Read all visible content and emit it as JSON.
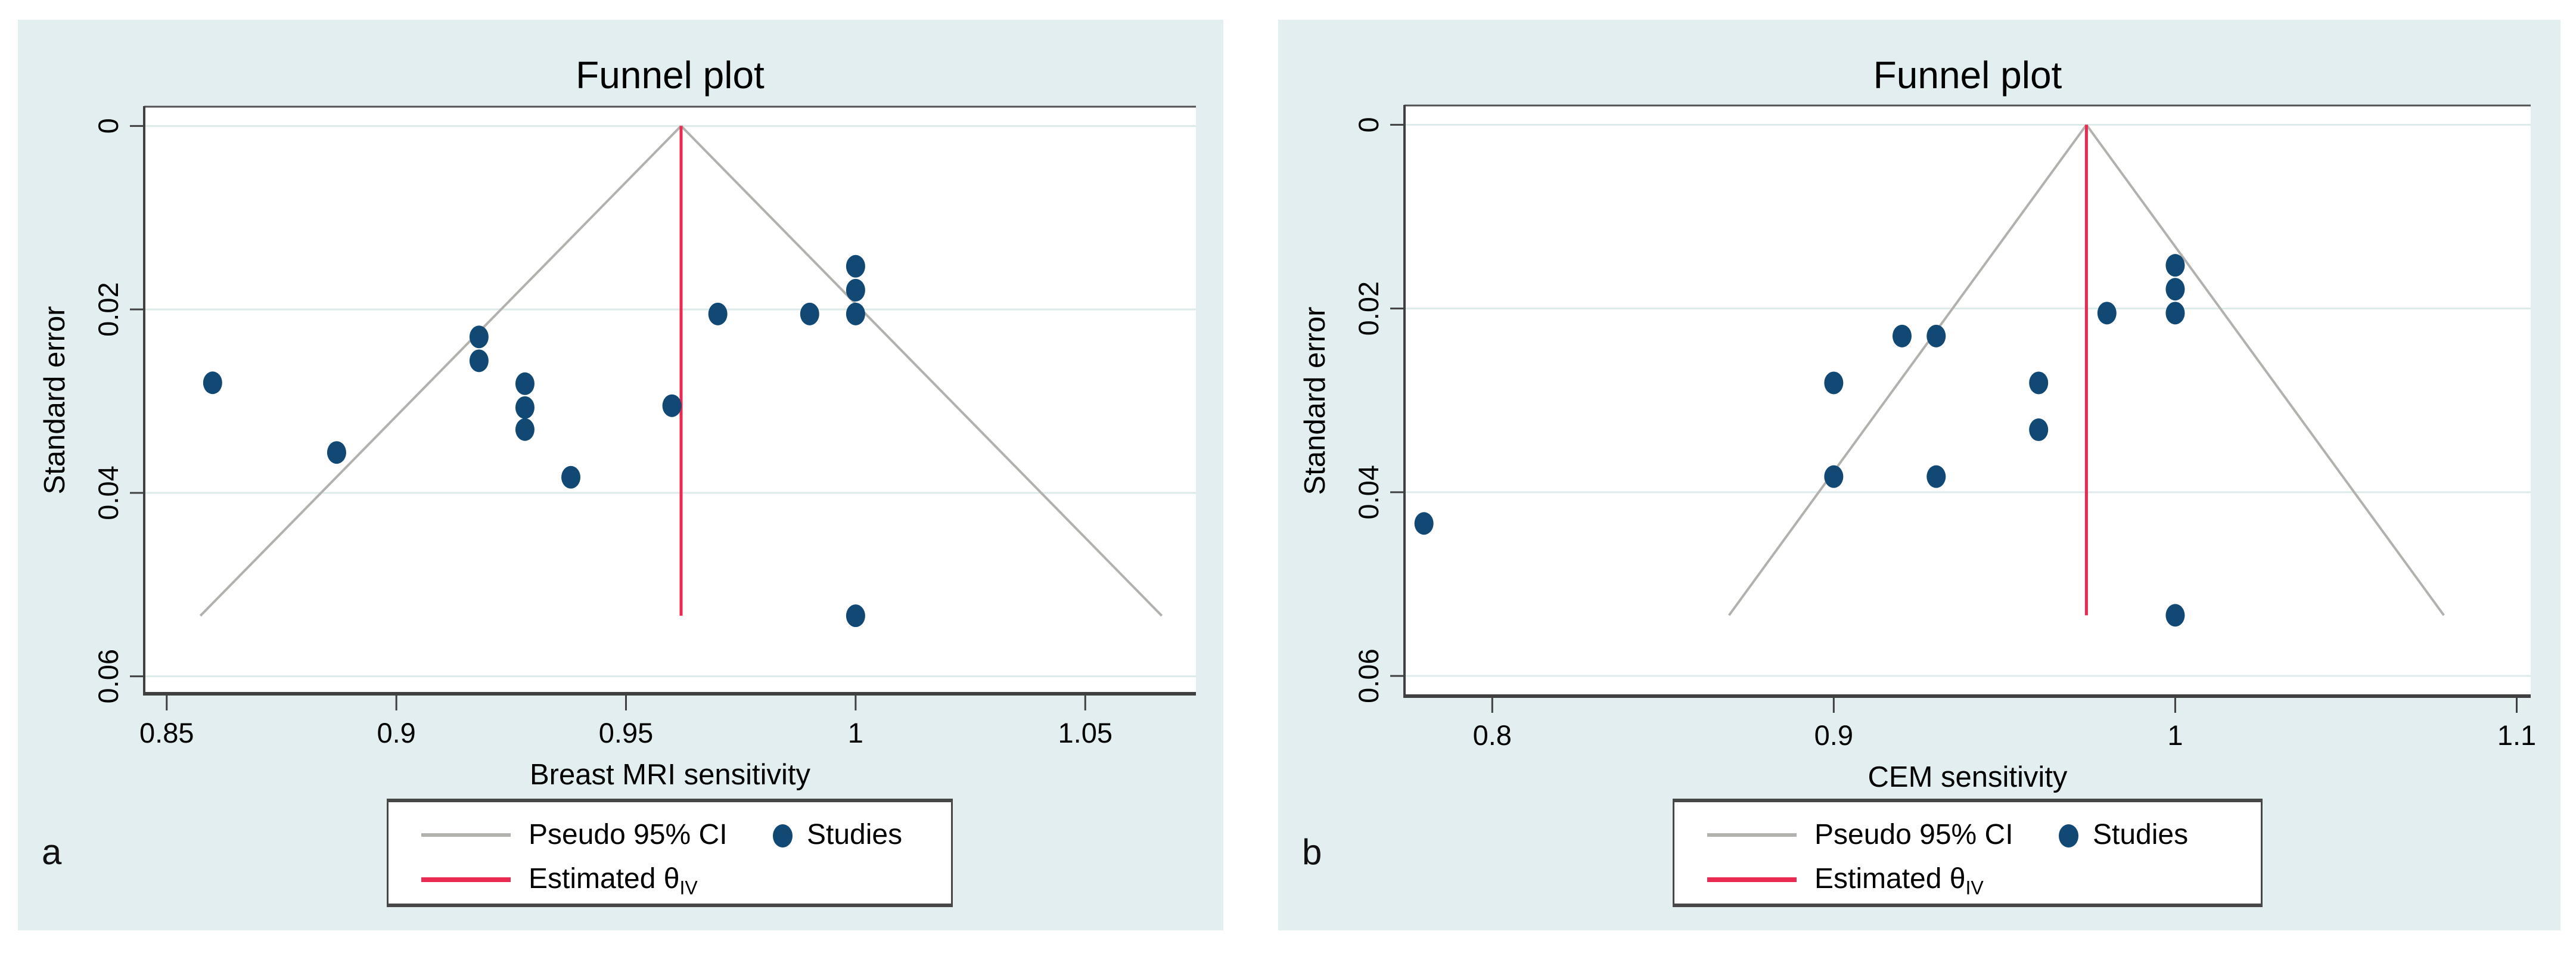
{
  "colors": {
    "canvas_bg": "#ffffff",
    "panel_bg": "#e3eef0",
    "plot_bg": "#ffffff",
    "gridline": "#dcebe9",
    "funnel_line": "#b3b1ae",
    "estimate_line": "#ea2a50",
    "marker": "#114974",
    "axis": "#404040",
    "top_border": "#525252",
    "title": "#1e3766",
    "text": "#000000"
  },
  "chart_data": [
    {
      "type": "scatter",
      "panel_letter": "a",
      "title": "Funnel plot",
      "xlabel": "Breast MRI sensitivity",
      "ylabel": "Standard error",
      "y_axis_reversed": true,
      "grid": "horizontal-only",
      "legend_position": "below",
      "xticks": [
        0.85,
        0.9,
        0.95,
        1,
        1.05
      ],
      "xtick_labels": [
        "0.85",
        "0.9",
        "0.95",
        "1",
        "1.05"
      ],
      "yticks": [
        0,
        0.02,
        0.04,
        0.06
      ],
      "ytick_labels": [
        "0",
        "0.02",
        "0.04",
        "0.06"
      ],
      "xlim": [
        0.8451,
        1.0741
      ],
      "ylim": [
        -0.0021,
        0.0619
      ],
      "estimated_theta": 0.962,
      "funnel_max_se": 0.0534,
      "ci_multiplier": 1.96,
      "points": [
        [
          0.86,
          0.028
        ],
        [
          0.887,
          0.0356
        ],
        [
          0.918,
          0.023
        ],
        [
          0.918,
          0.0256
        ],
        [
          0.928,
          0.0281
        ],
        [
          0.928,
          0.0307
        ],
        [
          0.928,
          0.0331
        ],
        [
          0.938,
          0.0383
        ],
        [
          0.96,
          0.0305
        ],
        [
          0.97,
          0.0205
        ],
        [
          0.99,
          0.0205
        ],
        [
          1.0,
          0.0153
        ],
        [
          1.0,
          0.0179
        ],
        [
          1.0,
          0.0205
        ],
        [
          1.0,
          0.0534
        ]
      ],
      "legend": {
        "ci_label": "Pseudo 95% CI",
        "studies_label": "Studies",
        "estimate_label": "Estimated θ",
        "estimate_sub": "IV"
      }
    },
    {
      "type": "scatter",
      "panel_letter": "b",
      "title": "Funnel plot",
      "xlabel": "CEM sensitivity",
      "ylabel": "Standard error",
      "y_axis_reversed": true,
      "grid": "horizontal-only",
      "legend_position": "below",
      "xticks": [
        0.8,
        0.9,
        1,
        1.1
      ],
      "xtick_labels": [
        "0.8",
        "0.9",
        "1",
        "1.1"
      ],
      "yticks": [
        0,
        0.02,
        0.04,
        0.06
      ],
      "ytick_labels": [
        "0",
        "0.02",
        "0.04",
        "0.06"
      ],
      "xlim": [
        0.7743,
        1.1041
      ],
      "ylim": [
        -0.0021,
        0.0622
      ],
      "estimated_theta": 0.974,
      "funnel_max_se": 0.0534,
      "ci_multiplier": 1.96,
      "points": [
        [
          0.78,
          0.0434
        ],
        [
          0.9,
          0.0281
        ],
        [
          0.9,
          0.0383
        ],
        [
          0.92,
          0.023
        ],
        [
          0.93,
          0.023
        ],
        [
          0.93,
          0.0383
        ],
        [
          0.96,
          0.0281
        ],
        [
          0.96,
          0.0332
        ],
        [
          0.98,
          0.0205
        ],
        [
          1.0,
          0.0153
        ],
        [
          1.0,
          0.0179
        ],
        [
          1.0,
          0.0205
        ],
        [
          1.0,
          0.0534
        ]
      ],
      "legend": {
        "ci_label": "Pseudo 95% CI",
        "studies_label": "Studies",
        "estimate_label": "Estimated θ",
        "estimate_sub": "IV"
      }
    }
  ]
}
